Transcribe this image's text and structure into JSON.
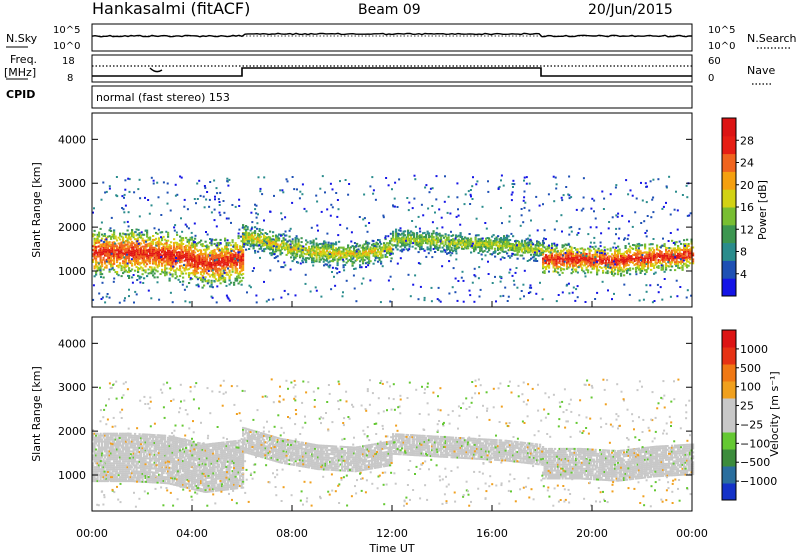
{
  "header": {
    "station": "Hankasalmi (fitACF)",
    "beam": "Beam 09",
    "date": "20/Jun/2015"
  },
  "top_panels": {
    "nsky_label": "N.Sky",
    "nsearch_label": "N.Search",
    "freq_label_1": "Freq.",
    "freq_label_2": "[MHz]",
    "cpid_label": "CPID",
    "nave_label": "Nave",
    "left_ticks_counts": [
      "10^5",
      "10^0"
    ],
    "right_ticks_counts": [
      "10^5",
      "10^0"
    ],
    "left_ticks_freq": [
      "18",
      "8"
    ],
    "right_ticks_nave": [
      "60",
      "0"
    ],
    "cpid_text": "normal (fast stereo) 153"
  },
  "x_axis": {
    "label": "Time UT",
    "ticks": [
      "00:00",
      "04:00",
      "08:00",
      "12:00",
      "16:00",
      "20:00",
      "00:00"
    ]
  },
  "chart_data": [
    {
      "type": "heatmap",
      "title": "",
      "xlabel": "",
      "ylabel": "Slant Range [km]",
      "y_ticks": [
        "1000",
        "2000",
        "3000",
        "4000"
      ],
      "ylim": [
        180,
        4600
      ],
      "xlim_hours": [
        0,
        24
      ],
      "colorbar": {
        "label": "Power [dB]",
        "ticks": [
          "4",
          "8",
          "12",
          "16",
          "20",
          "24",
          "28"
        ],
        "range": [
          0,
          30
        ],
        "colors": [
          "#1414e6",
          "#1e50b4",
          "#2a8c8c",
          "#3c9650",
          "#78be32",
          "#d2d214",
          "#f5a00f",
          "#f0641e",
          "#e61e14",
          "#dc1414"
        ]
      },
      "echo_bands": [
        {
          "x_start_h": 0.0,
          "x_end_h": 6.0,
          "range_center_km": [
            1400,
            1400,
            1350,
            1150,
            1250
          ],
          "thickness_km": 350,
          "peak_db": 28
        },
        {
          "x_start_h": 6.0,
          "x_end_h": 12.0,
          "range_center_km": [
            1800,
            1550,
            1400,
            1350,
            1500
          ],
          "thickness_km": 180,
          "peak_db": 18
        },
        {
          "x_start_h": 12.0,
          "x_end_h": 18.0,
          "range_center_km": [
            1700,
            1650,
            1600,
            1550,
            1450
          ],
          "thickness_km": 150,
          "peak_db": 16
        },
        {
          "x_start_h": 18.0,
          "x_end_h": 24.0,
          "range_center_km": [
            1250,
            1250,
            1200,
            1300,
            1350
          ],
          "thickness_km": 220,
          "peak_db": 28
        }
      ]
    },
    {
      "type": "heatmap",
      "title": "",
      "xlabel": "",
      "ylabel": "Slant Range [km]",
      "y_ticks": [
        "1000",
        "2000",
        "3000",
        "4000"
      ],
      "ylim": [
        180,
        4600
      ],
      "xlim_hours": [
        0,
        24
      ],
      "colorbar": {
        "label": "Velocity [m s⁻¹]",
        "ticks": [
          "1000",
          "500",
          "100",
          "25",
          "−25",
          "−100",
          "−500",
          "−1000"
        ],
        "colors": [
          "#1432c8",
          "#2a6e9e",
          "#3c8c3c",
          "#64c832",
          "#c8c8c8",
          "#c8c8c8",
          "#f0a01e",
          "#f07814",
          "#e63214",
          "#dc1414"
        ]
      },
      "dominant_color": "#c8c8c8"
    }
  ]
}
